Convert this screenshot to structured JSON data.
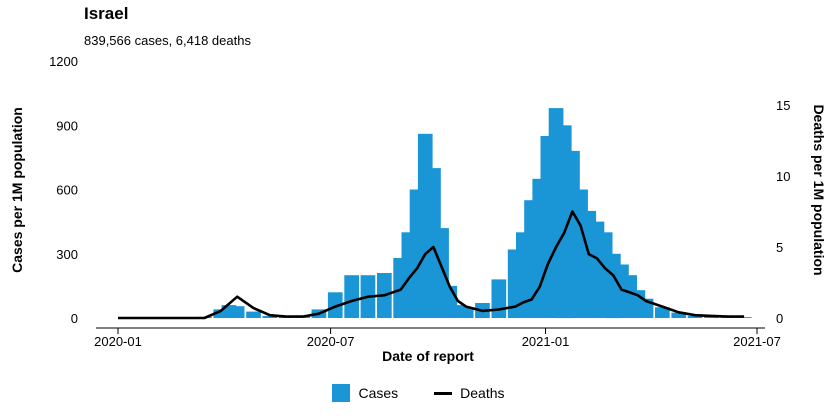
{
  "title": "Israel",
  "subtitle": "839,566 cases, 6,418 deaths",
  "colors": {
    "cases": "#1a96d6",
    "deaths": "#000000"
  },
  "chart_data": {
    "type": "bar",
    "title": "Israel",
    "subtitle": "839,566 cases, 6,418 deaths",
    "xlabel": "Date of report",
    "ylabel": "Cases per 1M population",
    "y2label": "Deaths per 1M population",
    "xlim": [
      "2020-01-01",
      "2021-07-01"
    ],
    "ylim": [
      0,
      1200
    ],
    "y2lim": [
      0,
      17.5
    ],
    "x_ticks": [
      "2020-01",
      "2020-07",
      "2021-01",
      "2021-07"
    ],
    "y_ticks": [
      0,
      300,
      600,
      900,
      1200
    ],
    "y2_ticks": [
      0,
      5,
      10,
      15
    ],
    "legend_position": "bottom",
    "grid": false,
    "x": [
      "2020-01-01",
      "2020-02-01",
      "2020-03-01",
      "2020-03-15",
      "2020-03-29",
      "2020-04-05",
      "2020-04-12",
      "2020-04-26",
      "2020-05-10",
      "2020-05-24",
      "2020-06-07",
      "2020-06-21",
      "2020-07-05",
      "2020-07-19",
      "2020-08-02",
      "2020-08-16",
      "2020-08-30",
      "2020-09-06",
      "2020-09-13",
      "2020-09-20",
      "2020-09-27",
      "2020-10-04",
      "2020-10-11",
      "2020-10-18",
      "2020-10-25",
      "2020-11-08",
      "2020-11-22",
      "2020-12-06",
      "2020-12-13",
      "2020-12-20",
      "2020-12-27",
      "2021-01-03",
      "2021-01-10",
      "2021-01-17",
      "2021-01-24",
      "2021-01-31",
      "2021-02-07",
      "2021-02-14",
      "2021-02-21",
      "2021-02-28",
      "2021-03-07",
      "2021-03-14",
      "2021-03-21",
      "2021-03-28",
      "2021-04-11",
      "2021-04-25",
      "2021-05-09",
      "2021-05-23",
      "2021-06-06",
      "2021-06-20"
    ],
    "series": [
      {
        "name": "Cases",
        "type": "bar",
        "axis": "left",
        "values": [
          0,
          0,
          0,
          5,
          40,
          60,
          55,
          30,
          10,
          5,
          12,
          40,
          120,
          200,
          200,
          210,
          280,
          400,
          600,
          860,
          700,
          420,
          150,
          60,
          50,
          70,
          180,
          320,
          400,
          550,
          650,
          850,
          980,
          900,
          780,
          600,
          500,
          450,
          400,
          300,
          250,
          200,
          130,
          90,
          50,
          25,
          10,
          8,
          5,
          4
        ]
      },
      {
        "name": "Deaths",
        "type": "line",
        "axis": "right",
        "values": [
          0,
          0,
          0,
          0,
          0.5,
          1,
          1.5,
          0.7,
          0.2,
          0.1,
          0.1,
          0.3,
          0.8,
          1.2,
          1.5,
          1.6,
          2,
          2.8,
          3.5,
          4.5,
          5,
          3.6,
          2.2,
          1.2,
          0.8,
          0.5,
          0.6,
          0.8,
          1.1,
          1.3,
          2.2,
          3.8,
          5,
          6,
          7.5,
          6.5,
          4.5,
          4.2,
          3.5,
          3,
          2,
          1.8,
          1.6,
          1.2,
          0.8,
          0.4,
          0.2,
          0.15,
          0.1,
          0.1
        ]
      }
    ]
  }
}
